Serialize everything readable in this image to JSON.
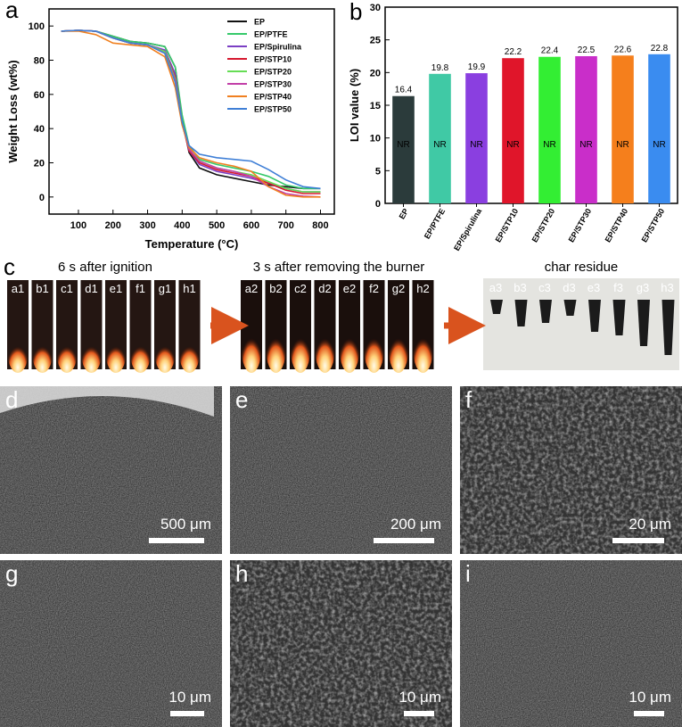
{
  "chart_data": [
    {
      "type": "line",
      "label": "a",
      "x_label": "Temperature (°C)",
      "y_label": "Weight Loss (wt%)",
      "x": [
        50,
        100,
        150,
        200,
        250,
        300,
        350,
        380,
        400,
        420,
        450,
        500,
        550,
        600,
        650,
        700,
        750,
        800
      ],
      "xlim": [
        15,
        840
      ],
      "xticks": [
        100,
        200,
        300,
        400,
        500,
        600,
        700,
        800
      ],
      "ylim": [
        -10,
        110
      ],
      "yticks": [
        0,
        20,
        40,
        60,
        80,
        100
      ],
      "legend": "upper right",
      "series": [
        {
          "name": "EP",
          "color": "#111111",
          "values": [
            97,
            97.5,
            97,
            94,
            91,
            90,
            88,
            76,
            45,
            26,
            17,
            13,
            11,
            9,
            7,
            6,
            5,
            5
          ]
        },
        {
          "name": "EP/PTFE",
          "color": "#36c96b",
          "values": [
            97,
            97.5,
            97,
            94,
            91,
            90,
            88,
            76,
            48,
            30,
            22,
            19,
            17,
            15,
            12,
            7,
            5,
            5
          ]
        },
        {
          "name": "EP/Spirulina",
          "color": "#7b3fc4",
          "values": [
            97,
            97.5,
            97,
            93,
            90,
            89,
            86,
            72,
            44,
            27,
            19,
            15,
            13,
            11,
            8,
            5,
            3,
            3
          ]
        },
        {
          "name": "EP/STP10",
          "color": "#d6182f",
          "values": [
            97,
            97.5,
            97,
            93,
            90,
            89,
            85,
            70,
            43,
            27,
            20,
            16,
            14,
            12,
            8,
            4,
            2,
            2
          ]
        },
        {
          "name": "EP/STP20",
          "color": "#66dd55",
          "values": [
            97,
            97.5,
            97,
            93,
            90,
            89,
            85,
            69,
            44,
            28,
            21,
            17,
            15,
            13,
            9,
            5,
            3,
            3
          ]
        },
        {
          "name": "EP/STP30",
          "color": "#c23fa8",
          "values": [
            97,
            97.5,
            97,
            93,
            90,
            89,
            84,
            68,
            43,
            28,
            21,
            17,
            15,
            12,
            6,
            2,
            0.5,
            0
          ]
        },
        {
          "name": "EP/STP40",
          "color": "#f08020",
          "values": [
            97,
            97,
            95,
            90,
            89,
            88,
            82,
            64,
            42,
            29,
            23,
            20,
            18,
            15,
            6,
            1,
            0,
            0
          ]
        },
        {
          "name": "EP/STP50",
          "color": "#3f7fd6",
          "values": [
            97,
            97.5,
            97,
            93,
            90,
            89,
            84,
            67,
            44,
            30,
            25,
            23,
            22,
            21,
            16,
            10,
            6,
            5
          ]
        }
      ]
    },
    {
      "type": "bar",
      "label": "b",
      "y_label": "LOI value (%)",
      "categories": [
        "EP",
        "EP/PTFE",
        "EP/Spirulina",
        "EP/STP10",
        "EP/STP20",
        "EP/STP30",
        "EP/STP40",
        "EP/STP50"
      ],
      "values": [
        16.4,
        19.8,
        19.9,
        22.2,
        22.4,
        22.5,
        22.6,
        22.8
      ],
      "colors": [
        "#2b3b3b",
        "#40c9a5",
        "#8a3fe0",
        "#e0152a",
        "#33ee33",
        "#c92ec9",
        "#f57f1c",
        "#3a8cf0"
      ],
      "bar_annotation": "NR",
      "ylim": [
        0,
        30
      ],
      "yticks": [
        0,
        5,
        10,
        15,
        20,
        25,
        30
      ]
    }
  ],
  "photos": {
    "label": "c",
    "groups": [
      {
        "caption": "6 s after ignition",
        "items": [
          "a1",
          "b1",
          "c1",
          "d1",
          "e1",
          "f1",
          "g1",
          "h1"
        ]
      },
      {
        "caption": "3 s after removing the burner",
        "items": [
          "a2",
          "b2",
          "c2",
          "d2",
          "e2",
          "f2",
          "g2",
          "h2"
        ]
      },
      {
        "caption": "char residue",
        "items": [
          "a3",
          "b3",
          "c3",
          "d3",
          "e3",
          "f3",
          "g3",
          "h3"
        ]
      }
    ]
  },
  "sem": [
    {
      "label": "d",
      "scale": "500 μm"
    },
    {
      "label": "e",
      "scale": "200 μm"
    },
    {
      "label": "f",
      "scale": "20 μm"
    },
    {
      "label": "g",
      "scale": "10 μm"
    },
    {
      "label": "h",
      "scale": "10 μm"
    },
    {
      "label": "i",
      "scale": "10 μm"
    }
  ]
}
